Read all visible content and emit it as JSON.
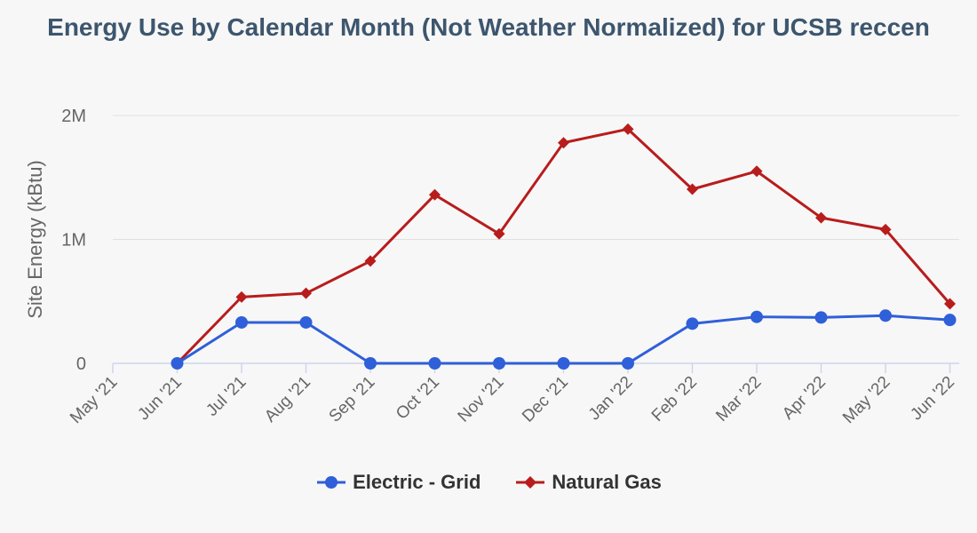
{
  "colors": {
    "electric": "#2f5fd9",
    "gas": "#b81c1c",
    "title": "#3d566e",
    "axis_text": "#666666",
    "grid": "#e0e0e0",
    "axis_line": "#ccd6eb"
  },
  "chart_data": {
    "type": "line",
    "title": "Energy Use by Calendar Month (Not Weather Normalized) for UCSB reccen",
    "xlabel": "",
    "ylabel": "Site Energy (kBtu)",
    "categories": [
      "May '21",
      "Jun '21",
      "Jul '21",
      "Aug '21",
      "Sep '21",
      "Oct '21",
      "Nov '21",
      "Dec '21",
      "Jan '22",
      "Feb '22",
      "Mar '22",
      "Apr '22",
      "May '22",
      "Jun '22"
    ],
    "y_ticks": [
      {
        "value": 0,
        "label": "0"
      },
      {
        "value": 1000000,
        "label": "1M"
      },
      {
        "value": 2000000,
        "label": "2M"
      }
    ],
    "ylim": [
      0,
      2000000
    ],
    "grid": true,
    "legend_position": "bottom",
    "series": [
      {
        "name": "Electric - Grid",
        "marker": "circle",
        "color": "#2f5fd9",
        "values": [
          null,
          0,
          330000,
          330000,
          0,
          0,
          0,
          0,
          0,
          320000,
          375000,
          370000,
          385000,
          350000
        ]
      },
      {
        "name": "Natural Gas",
        "marker": "diamond",
        "color": "#b81c1c",
        "values": [
          null,
          0,
          535000,
          565000,
          825000,
          1360000,
          1045000,
          1780000,
          1890000,
          1405000,
          1550000,
          1175000,
          1080000,
          480000
        ]
      }
    ]
  }
}
